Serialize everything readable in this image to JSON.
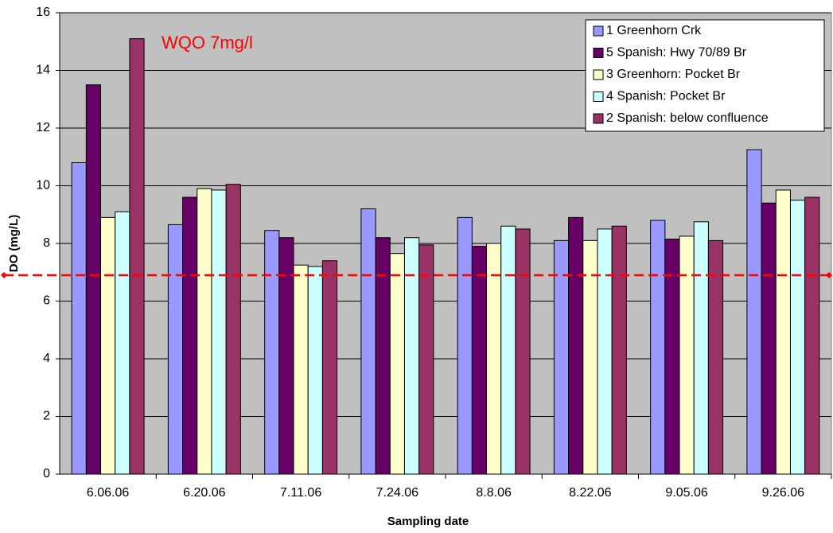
{
  "chart_data": {
    "type": "bar",
    "x_label": "Sampling date",
    "y_label": "DO (mg/L)",
    "categories": [
      "6.06.06",
      "6.20.06",
      "7.11.06",
      "7.24.06",
      "8.8.06",
      "8.22.06",
      "9.05.06",
      "9.26.06"
    ],
    "series": [
      {
        "name": "1 Greenhorn Crk",
        "color": "#9999ff",
        "values": [
          10.8,
          8.65,
          8.45,
          9.2,
          8.9,
          8.1,
          8.8,
          11.25
        ]
      },
      {
        "name": "5 Spanish: Hwy 70/89 Br",
        "color": "#660066",
        "values": [
          13.5,
          9.6,
          8.2,
          8.2,
          7.9,
          8.9,
          8.15,
          9.4
        ]
      },
      {
        "name": "3 Greenhorn: Pocket Br",
        "color": "#ffffcc",
        "values": [
          8.9,
          9.9,
          7.25,
          7.65,
          8.0,
          8.1,
          8.25,
          9.85
        ]
      },
      {
        "name": "4 Spanish: Pocket Br",
        "color": "#ccffff",
        "values": [
          9.1,
          9.85,
          7.2,
          8.2,
          8.6,
          8.5,
          8.75,
          9.5
        ]
      },
      {
        "name": "2 Spanish: below confluence",
        "color": "#993366",
        "values": [
          15.1,
          10.05,
          7.4,
          7.95,
          8.5,
          8.6,
          8.1,
          9.6
        ]
      }
    ],
    "ylim": [
      0,
      16
    ],
    "yticks": [
      0,
      2,
      4,
      6,
      8,
      10,
      12,
      14,
      16
    ],
    "grid": true,
    "background": "#c0c0c0",
    "legend": "top-right",
    "reference_line": {
      "value": 6.9,
      "label": "WQO 7mg/l",
      "color": "#ff0000"
    }
  }
}
